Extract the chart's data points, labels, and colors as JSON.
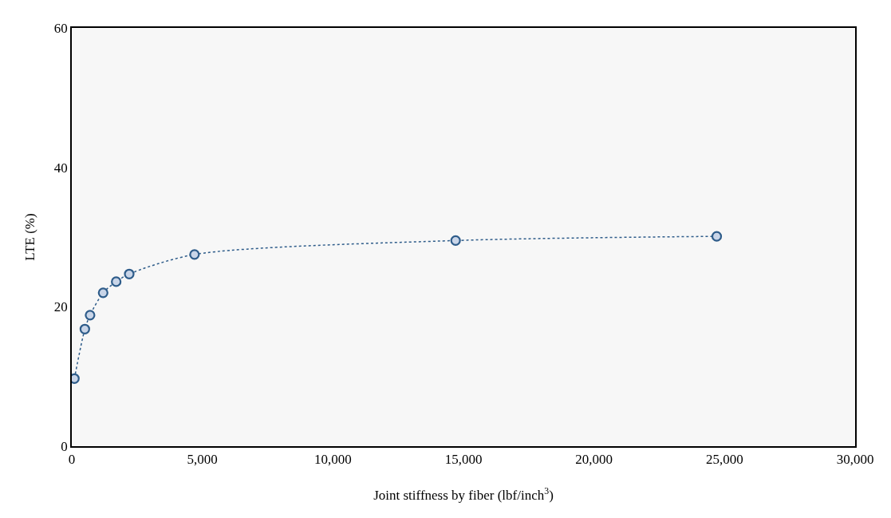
{
  "chart_data": {
    "type": "line",
    "xlabel": "Joint stiffness by fiber (lbf/inch$^{3}$)",
    "ylabel": "LTE (%)",
    "xlim": [
      0,
      30000
    ],
    "xticks": [
      {
        "value": 0,
        "label": "0"
      },
      {
        "value": 5000,
        "label": "5,000"
      },
      {
        "value": 10000,
        "label": "10,000"
      },
      {
        "value": 15000,
        "label": "15,000"
      },
      {
        "value": 20000,
        "label": "20,000"
      },
      {
        "value": 25000,
        "label": "25,000"
      },
      {
        "value": 30000,
        "label": "30,000"
      }
    ],
    "ylim": [
      0,
      60
    ],
    "yticks": [
      0,
      20,
      40,
      60
    ],
    "grid": false,
    "marker": "circle",
    "line_style": "dotted",
    "series": [
      {
        "color": "#2e5c8a",
        "x": [
          100,
          500,
          700,
          1200,
          1700,
          2200,
          4700,
          14700,
          24700
        ],
        "values": [
          9.7,
          16.8,
          18.8,
          22.0,
          23.6,
          24.7,
          27.5,
          29.5,
          30.1
        ]
      }
    ]
  }
}
